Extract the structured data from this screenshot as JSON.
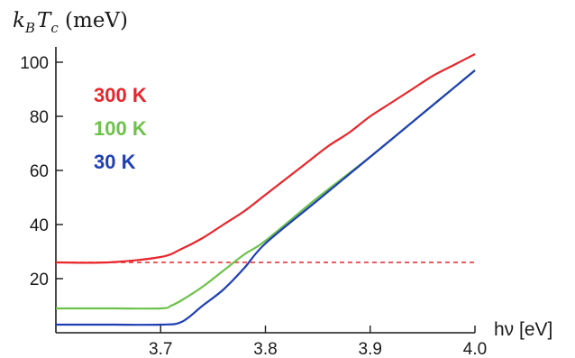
{
  "chart_data": {
    "type": "line",
    "title": "",
    "ylabel_parts": {
      "k": "k",
      "k_sub": "B",
      "T": "T",
      "T_sub": "c",
      "unit": " (meV)"
    },
    "xlabel": "hν [eV]",
    "xlim": [
      3.6,
      4.0
    ],
    "ylim": [
      0,
      105
    ],
    "x_ticks": [
      3.7,
      3.8,
      3.9,
      4.0
    ],
    "x_tick_labels": [
      "3.7",
      "3.8",
      "3.9",
      "4.0"
    ],
    "y_ticks": [
      20,
      40,
      60,
      80,
      100
    ],
    "y_tick_labels": [
      "20",
      "40",
      "60",
      "80",
      "100"
    ],
    "grid": false,
    "legend_position": "top-left",
    "series": [
      {
        "name": "300 K",
        "color": "#e8262b",
        "x": [
          3.6,
          3.65,
          3.7,
          3.72,
          3.74,
          3.76,
          3.78,
          3.8,
          3.82,
          3.84,
          3.86,
          3.88,
          3.9,
          3.92,
          3.94,
          3.96,
          3.98,
          4.0
        ],
        "y": [
          26,
          26,
          28,
          31,
          35,
          40,
          45,
          51,
          57,
          63,
          69,
          74,
          80,
          85,
          90,
          95,
          99,
          103
        ]
      },
      {
        "name": "100 K",
        "color": "#6cc24a",
        "x": [
          3.6,
          3.65,
          3.7,
          3.71,
          3.72,
          3.74,
          3.76,
          3.78,
          3.8,
          3.85,
          3.9,
          3.95,
          4.0
        ],
        "y": [
          9,
          9,
          9,
          10,
          12,
          17,
          23,
          29,
          34,
          50,
          65,
          81,
          97
        ]
      },
      {
        "name": "30 K",
        "color": "#1f3fb4",
        "x": [
          3.6,
          3.65,
          3.7,
          3.72,
          3.74,
          3.76,
          3.78,
          3.8,
          3.85,
          3.9,
          3.95,
          4.0
        ],
        "y": [
          3,
          3,
          3,
          4,
          10,
          16,
          24,
          33,
          49,
          65,
          81,
          97
        ]
      }
    ],
    "reference_lines": [
      {
        "type": "horizontal",
        "y": 26,
        "color": "#e8262b",
        "style": "dashed",
        "x_range": [
          3.6,
          4.0
        ]
      }
    ]
  }
}
